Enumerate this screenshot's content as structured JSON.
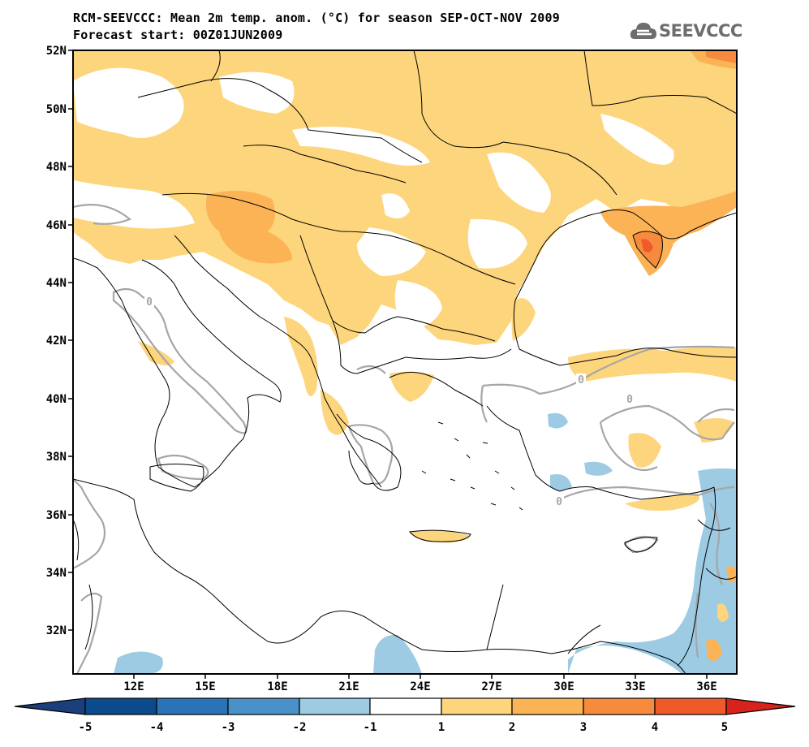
{
  "header": {
    "title_line1": "RCM-SEEVCCC: Mean 2m temp. anom. (°C) for season SEP-OCT-NOV 2009",
    "title_line2": "Forecast start: 00Z01JUN2009"
  },
  "logo": {
    "text": "SEEVCCC",
    "icon": "cloud-icon"
  },
  "map": {
    "lat_labels": [
      "52N",
      "50N",
      "48N",
      "46N",
      "44N",
      "42N",
      "40N",
      "38N",
      "36N",
      "34N",
      "32N"
    ],
    "lon_labels": [
      "12E",
      "15E",
      "18E",
      "21E",
      "24E",
      "27E",
      "30E",
      "33E",
      "36E"
    ],
    "contour_labels": [
      "0",
      "0",
      "0",
      "0"
    ],
    "colors": {
      "anom_1_2": "#fdd57c",
      "anom_2_3": "#fbb356",
      "anom_3_4": "#f68b3e",
      "anom_4_5": "#ee5a2a",
      "anom_m2_m1": "#9dcbe4",
      "zero_contour": "#a6a6a6",
      "coast": "#000000"
    }
  },
  "colorbar": {
    "labels": [
      "-5",
      "-4",
      "-3",
      "-2",
      "-1",
      "1",
      "2",
      "3",
      "4",
      "5"
    ],
    "colors": [
      "#0b4a8c",
      "#2a73b6",
      "#4a91c9",
      "#6fadd9",
      "#9dcbe4",
      "#ffffff",
      "#fdd57c",
      "#fbb356",
      "#f68b3e",
      "#ee5a2a",
      "#d6231b",
      "#1a3f7a"
    ]
  }
}
